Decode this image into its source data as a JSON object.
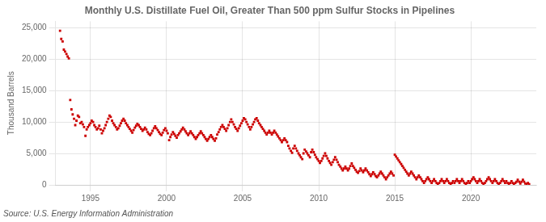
{
  "chart_data": {
    "type": "scatter",
    "title": "Monthly U.S. Distillate Fuel Oil, Greater Than 500 ppm Sulfur Stocks in Pipelines",
    "ylabel": "Thousand Barrels",
    "annotations": [
      "Source: U.S. Energy Information Administration"
    ],
    "color": "#cc0000",
    "marker": "square",
    "grid": true,
    "xlim": [
      1992.7,
      2024.3
    ],
    "ylim": [
      0,
      26000
    ],
    "xticks": [
      1995,
      2000,
      2005,
      2010,
      2015,
      2020
    ],
    "yticks": [
      0,
      {
        "value": 5000,
        "label": "5,000"
      },
      {
        "value": 10000,
        "label": "10,000"
      },
      {
        "value": 15000,
        "label": "15,000"
      },
      {
        "value": 20000,
        "label": "20,000"
      },
      {
        "value": 25000,
        "label": "25,000"
      }
    ],
    "x": [
      1993.0,
      1993.08,
      1993.17,
      1993.25,
      1993.33,
      1993.42,
      1993.5,
      1993.58,
      1993.67,
      1993.75,
      1993.83,
      1993.92,
      1994.0,
      1994.08,
      1994.17,
      1994.25,
      1994.33,
      1994.42,
      1994.5,
      1994.58,
      1994.67,
      1994.75,
      1994.83,
      1994.92,
      1995.0,
      1995.08,
      1995.17,
      1995.25,
      1995.33,
      1995.42,
      1995.5,
      1995.58,
      1995.67,
      1995.75,
      1995.83,
      1995.92,
      1996.0,
      1996.08,
      1996.17,
      1996.25,
      1996.33,
      1996.42,
      1996.5,
      1996.58,
      1996.67,
      1996.75,
      1996.83,
      1996.92,
      1997.0,
      1997.08,
      1997.17,
      1997.25,
      1997.33,
      1997.42,
      1997.5,
      1997.58,
      1997.67,
      1997.75,
      1997.83,
      1997.92,
      1998.0,
      1998.08,
      1998.17,
      1998.25,
      1998.33,
      1998.42,
      1998.5,
      1998.58,
      1998.67,
      1998.75,
      1998.83,
      1998.92,
      1999.0,
      1999.08,
      1999.17,
      1999.25,
      1999.33,
      1999.42,
      1999.5,
      1999.58,
      1999.67,
      1999.75,
      1999.83,
      1999.92,
      2000.0,
      2000.08,
      2000.17,
      2000.25,
      2000.33,
      2000.42,
      2000.5,
      2000.58,
      2000.67,
      2000.75,
      2000.83,
      2000.92,
      2001.0,
      2001.08,
      2001.17,
      2001.25,
      2001.33,
      2001.42,
      2001.5,
      2001.58,
      2001.67,
      2001.75,
      2001.83,
      2001.92,
      2002.0,
      2002.08,
      2002.17,
      2002.25,
      2002.33,
      2002.42,
      2002.5,
      2002.58,
      2002.67,
      2002.75,
      2002.83,
      2002.92,
      2003.0,
      2003.08,
      2003.17,
      2003.25,
      2003.33,
      2003.42,
      2003.5,
      2003.58,
      2003.67,
      2003.75,
      2003.83,
      2003.92,
      2004.0,
      2004.08,
      2004.17,
      2004.25,
      2004.33,
      2004.42,
      2004.5,
      2004.58,
      2004.67,
      2004.75,
      2004.83,
      2004.92,
      2005.0,
      2005.08,
      2005.17,
      2005.25,
      2005.33,
      2005.42,
      2005.5,
      2005.58,
      2005.67,
      2005.75,
      2005.83,
      2005.92,
      2006.0,
      2006.08,
      2006.17,
      2006.25,
      2006.33,
      2006.42,
      2006.5,
      2006.58,
      2006.67,
      2006.75,
      2006.83,
      2006.92,
      2007.0,
      2007.08,
      2007.17,
      2007.25,
      2007.33,
      2007.42,
      2007.5,
      2007.58,
      2007.67,
      2007.75,
      2007.83,
      2007.92,
      2008.0,
      2008.08,
      2008.17,
      2008.25,
      2008.33,
      2008.42,
      2008.5,
      2008.58,
      2008.67,
      2008.75,
      2008.83,
      2008.92,
      2009.0,
      2009.08,
      2009.17,
      2009.25,
      2009.33,
      2009.42,
      2009.5,
      2009.58,
      2009.67,
      2009.75,
      2009.83,
      2009.92,
      2010.0,
      2010.08,
      2010.17,
      2010.25,
      2010.33,
      2010.42,
      2010.5,
      2010.58,
      2010.67,
      2010.75,
      2010.83,
      2010.92,
      2011.0,
      2011.08,
      2011.17,
      2011.25,
      2011.33,
      2011.42,
      2011.5,
      2011.58,
      2011.67,
      2011.75,
      2011.83,
      2011.92,
      2012.0,
      2012.08,
      2012.17,
      2012.25,
      2012.33,
      2012.42,
      2012.5,
      2012.58,
      2012.67,
      2012.75,
      2012.83,
      2012.92,
      2013.0,
      2013.08,
      2013.17,
      2013.25,
      2013.33,
      2013.42,
      2013.5,
      2013.58,
      2013.67,
      2013.75,
      2013.83,
      2013.92,
      2014.0,
      2014.08,
      2014.17,
      2014.25,
      2014.33,
      2014.42,
      2014.5,
      2014.58,
      2014.67,
      2014.75,
      2014.83,
      2014.92,
      2015.0,
      2015.08,
      2015.17,
      2015.25,
      2015.33,
      2015.42,
      2015.5,
      2015.58,
      2015.67,
      2015.75,
      2015.83,
      2015.92,
      2016.0,
      2016.08,
      2016.17,
      2016.25,
      2016.33,
      2016.42,
      2016.5,
      2016.58,
      2016.67,
      2016.75,
      2016.83,
      2016.92,
      2017.0,
      2017.08,
      2017.17,
      2017.25,
      2017.33,
      2017.42,
      2017.5,
      2017.58,
      2017.67,
      2017.75,
      2017.83,
      2017.92,
      2018.0,
      2018.08,
      2018.17,
      2018.25,
      2018.33,
      2018.42,
      2018.5,
      2018.58,
      2018.67,
      2018.75,
      2018.83,
      2018.92,
      2019.0,
      2019.08,
      2019.17,
      2019.25,
      2019.33,
      2019.42,
      2019.5,
      2019.58,
      2019.67,
      2019.75,
      2019.83,
      2019.92,
      2020.0,
      2020.08,
      2020.17,
      2020.25,
      2020.33,
      2020.42,
      2020.5,
      2020.58,
      2020.67,
      2020.75,
      2020.83,
      2020.92,
      2021.0,
      2021.08,
      2021.17,
      2021.25,
      2021.33,
      2021.42,
      2021.5,
      2021.58,
      2021.67,
      2021.75,
      2021.83,
      2021.92,
      2022.0,
      2022.08,
      2022.17,
      2022.25,
      2022.33,
      2022.42,
      2022.5,
      2022.58,
      2022.67,
      2022.75,
      2022.83,
      2022.92,
      2023.0,
      2023.08,
      2023.17,
      2023.25,
      2023.33,
      2023.42,
      2023.5,
      2023.58,
      2023.67,
      2023.75,
      2023.83
    ],
    "values": [
      24500,
      23200,
      22800,
      21500,
      21200,
      20800,
      20400,
      20100,
      13500,
      12000,
      11200,
      10500,
      9500,
      10200,
      11000,
      10800,
      9800,
      10000,
      9600,
      9200,
      7800,
      8800,
      9200,
      9500,
      9800,
      10200,
      10000,
      9500,
      9200,
      8800,
      9000,
      9400,
      8800,
      8200,
      8600,
      9000,
      9500,
      10000,
      10500,
      11000,
      10800,
      10200,
      9800,
      9500,
      9200,
      8800,
      9000,
      9400,
      9800,
      10200,
      10500,
      10200,
      9800,
      9500,
      9200,
      8900,
      8600,
      8300,
      8700,
      9100,
      9400,
      9700,
      9500,
      9200,
      8900,
      8600,
      8800,
      9100,
      8800,
      8400,
      8100,
      7900,
      8200,
      8600,
      9000,
      9300,
      9000,
      8700,
      8400,
      8100,
      7900,
      8300,
      8700,
      9000,
      8600,
      8200,
      7100,
      7600,
      8000,
      8400,
      8100,
      7800,
      7500,
      7900,
      8200,
      8500,
      8800,
      9100,
      8800,
      8500,
      8200,
      7900,
      8200,
      8500,
      8200,
      7900,
      7600,
      7300,
      7600,
      7900,
      8200,
      8500,
      8200,
      7900,
      7600,
      7300,
      7000,
      7300,
      7600,
      7900,
      7600,
      7300,
      7000,
      7400,
      8000,
      8400,
      8800,
      9200,
      9500,
      9200,
      8900,
      8600,
      9000,
      9500,
      10000,
      10400,
      10000,
      9600,
      9200,
      8900,
      8600,
      9000,
      9400,
      9800,
      10200,
      10600,
      10400,
      10000,
      9600,
      9200,
      8800,
      9200,
      9600,
      10000,
      10400,
      10600,
      10200,
      9800,
      9500,
      9200,
      8900,
      8600,
      8300,
      8000,
      8300,
      8600,
      8300,
      8000,
      8300,
      8600,
      8300,
      8000,
      7700,
      7400,
      7100,
      6800,
      7100,
      7400,
      7100,
      6800,
      6200,
      5800,
      5400,
      5100,
      5800,
      6200,
      5800,
      5400,
      5000,
      4700,
      4400,
      4100,
      5000,
      5600,
      5300,
      5000,
      4700,
      4400,
      5200,
      5600,
      5200,
      4800,
      4400,
      4100,
      3800,
      3500,
      3800,
      4200,
      4600,
      5000,
      4600,
      4200,
      3800,
      3500,
      3200,
      3600,
      4000,
      4400,
      4000,
      3600,
      3200,
      2900,
      2600,
      2300,
      2600,
      2900,
      2600,
      2300,
      2600,
      3000,
      3400,
      3000,
      2700,
      2400,
      2100,
      1900,
      2200,
      2600,
      2300,
      2000,
      2300,
      2600,
      2300,
      2000,
      1700,
      1400,
      1700,
      2000,
      1700,
      1400,
      1200,
      1500,
      1800,
      2100,
      1800,
      1500,
      1200,
      900,
      1200,
      1500,
      1800,
      2100,
      1800,
      1500,
      4800,
      4500,
      4200,
      3900,
      3600,
      3300,
      3000,
      2700,
      2400,
      2100,
      1800,
      1500,
      1800,
      2100,
      1800,
      1500,
      1200,
      900,
      1200,
      1500,
      1200,
      900,
      600,
      300,
      600,
      900,
      1200,
      900,
      600,
      300,
      600,
      900,
      600,
      300,
      100,
      300,
      600,
      900,
      600,
      300,
      600,
      900,
      600,
      300,
      100,
      300,
      600,
      300,
      600,
      900,
      600,
      300,
      600,
      900,
      600,
      300,
      100,
      300,
      600,
      300,
      600,
      900,
      1200,
      900,
      600,
      300,
      600,
      900,
      600,
      300,
      100,
      300,
      600,
      900,
      1200,
      900,
      600,
      300,
      600,
      900,
      600,
      300,
      100,
      300,
      600,
      900,
      600,
      300,
      600,
      300,
      100,
      300,
      600,
      300,
      100,
      300,
      500,
      800,
      500,
      200,
      500,
      800,
      500,
      200,
      100,
      300,
      100
    ]
  }
}
